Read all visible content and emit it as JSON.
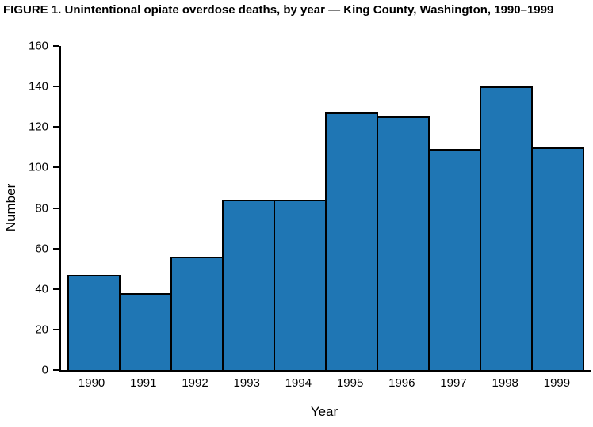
{
  "colors": {
    "bar_fill": "#1F76B4",
    "bar_outline": "#000000",
    "axis": "#000000"
  },
  "chart_data": {
    "type": "bar",
    "title": "FIGURE 1. Unintentional opiate overdose deaths, by year — King County, Washington, 1990–1999",
    "categories": [
      "1990",
      "1991",
      "1992",
      "1993",
      "1994",
      "1995",
      "1996",
      "1997",
      "1998",
      "1999"
    ],
    "values": [
      47,
      38,
      56,
      84,
      84,
      127,
      125,
      109,
      140,
      110
    ],
    "xlabel": "Year",
    "ylabel": "Number",
    "ylim": [
      0,
      160
    ],
    "yticks": [
      0,
      20,
      40,
      60,
      80,
      100,
      120,
      140,
      160
    ],
    "grid": false,
    "legend_position": "none",
    "bar_gap": 0
  }
}
